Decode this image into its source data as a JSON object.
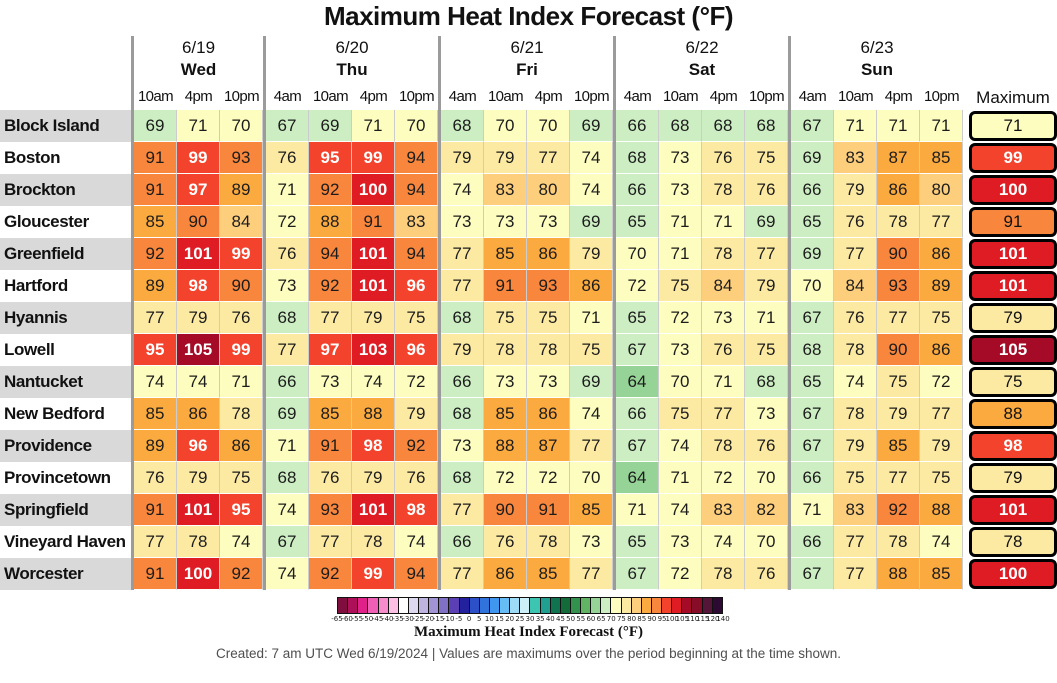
{
  "title": "Maximum Heat Index Forecast (°F)",
  "chart_data": {
    "type": "heatmap",
    "title": "Maximum Heat Index Forecast (°F)",
    "unit": "°F",
    "max_header": "Maximum",
    "white_text_min": 95,
    "days": [
      {
        "date": "6/19",
        "name": "Wed",
        "times": [
          "10am",
          "4pm",
          "10pm"
        ]
      },
      {
        "date": "6/20",
        "name": "Thu",
        "times": [
          "4am",
          "10am",
          "4pm",
          "10pm"
        ]
      },
      {
        "date": "6/21",
        "name": "Fri",
        "times": [
          "4am",
          "10am",
          "4pm",
          "10pm"
        ]
      },
      {
        "date": "6/22",
        "name": "Sat",
        "times": [
          "4am",
          "10am",
          "4pm",
          "10pm"
        ]
      },
      {
        "date": "6/23",
        "name": "Sun",
        "times": [
          "4am",
          "10am",
          "4pm",
          "10pm"
        ]
      }
    ],
    "color_bins": [
      {
        "min": 60,
        "color": "#96d396"
      },
      {
        "min": 65,
        "color": "#cdeec3"
      },
      {
        "min": 70,
        "color": "#fcfdbe"
      },
      {
        "min": 75,
        "color": "#fdeaa2"
      },
      {
        "min": 80,
        "color": "#fdcf7c"
      },
      {
        "min": 85,
        "color": "#fbaa3f"
      },
      {
        "min": 90,
        "color": "#f8863c"
      },
      {
        "min": 95,
        "color": "#f4432d"
      },
      {
        "min": 100,
        "color": "#df1c24"
      },
      {
        "min": 105,
        "color": "#a50b26"
      }
    ],
    "rows": [
      {
        "location": "Block Island",
        "values": [
          69,
          71,
          70,
          67,
          69,
          71,
          70,
          68,
          70,
          70,
          69,
          66,
          68,
          68,
          68,
          67,
          71,
          71,
          71
        ],
        "max": 71
      },
      {
        "location": "Boston",
        "values": [
          91,
          99,
          93,
          76,
          95,
          99,
          94,
          79,
          79,
          77,
          74,
          68,
          73,
          76,
          75,
          69,
          83,
          87,
          85
        ],
        "max": 99
      },
      {
        "location": "Brockton",
        "values": [
          91,
          97,
          89,
          71,
          92,
          100,
          94,
          74,
          83,
          80,
          74,
          66,
          73,
          78,
          76,
          66,
          79,
          86,
          80
        ],
        "max": 100
      },
      {
        "location": "Gloucester",
        "values": [
          85,
          90,
          84,
          72,
          88,
          91,
          83,
          73,
          73,
          73,
          69,
          65,
          71,
          71,
          69,
          65,
          76,
          78,
          77
        ],
        "max": 91
      },
      {
        "location": "Greenfield",
        "values": [
          92,
          101,
          99,
          76,
          94,
          101,
          94,
          77,
          85,
          86,
          79,
          70,
          71,
          78,
          77,
          69,
          77,
          90,
          86
        ],
        "max": 101
      },
      {
        "location": "Hartford",
        "values": [
          89,
          98,
          90,
          73,
          92,
          101,
          96,
          77,
          91,
          93,
          86,
          72,
          75,
          84,
          79,
          70,
          84,
          93,
          89
        ],
        "max": 101
      },
      {
        "location": "Hyannis",
        "values": [
          77,
          79,
          76,
          68,
          77,
          79,
          75,
          68,
          75,
          75,
          71,
          65,
          72,
          73,
          71,
          67,
          76,
          77,
          75
        ],
        "max": 79
      },
      {
        "location": "Lowell",
        "values": [
          95,
          105,
          99,
          77,
          97,
          103,
          96,
          79,
          78,
          78,
          75,
          67,
          73,
          76,
          75,
          68,
          78,
          90,
          86
        ],
        "max": 105
      },
      {
        "location": "Nantucket",
        "values": [
          74,
          74,
          71,
          66,
          73,
          74,
          72,
          66,
          73,
          73,
          69,
          64,
          70,
          71,
          68,
          65,
          74,
          75,
          72
        ],
        "max": 75
      },
      {
        "location": "New Bedford",
        "values": [
          85,
          86,
          78,
          69,
          85,
          88,
          79,
          68,
          85,
          86,
          74,
          66,
          75,
          77,
          73,
          67,
          78,
          79,
          77
        ],
        "max": 88
      },
      {
        "location": "Providence",
        "values": [
          89,
          96,
          86,
          71,
          91,
          98,
          92,
          73,
          88,
          87,
          77,
          67,
          74,
          78,
          76,
          67,
          79,
          85,
          79
        ],
        "max": 98
      },
      {
        "location": "Provincetown",
        "values": [
          76,
          79,
          75,
          68,
          76,
          79,
          76,
          68,
          72,
          72,
          70,
          64,
          71,
          72,
          70,
          66,
          75,
          77,
          75
        ],
        "max": 79
      },
      {
        "location": "Springfield",
        "values": [
          91,
          101,
          95,
          74,
          93,
          101,
          98,
          77,
          90,
          91,
          85,
          71,
          74,
          83,
          82,
          71,
          83,
          92,
          88
        ],
        "max": 101
      },
      {
        "location": "Vineyard Haven",
        "values": [
          77,
          78,
          74,
          67,
          77,
          78,
          74,
          66,
          76,
          78,
          73,
          65,
          73,
          74,
          70,
          66,
          77,
          78,
          74
        ],
        "max": 78
      },
      {
        "location": "Worcester",
        "values": [
          91,
          100,
          92,
          74,
          92,
          99,
          94,
          77,
          86,
          85,
          77,
          67,
          72,
          78,
          76,
          67,
          77,
          88,
          85
        ],
        "max": 100
      }
    ]
  },
  "colorbar": {
    "label": "Maximum Heat Index Forecast (°F)",
    "ticks": [
      -65,
      -60,
      -55,
      -50,
      -45,
      -40,
      -35,
      -30,
      -25,
      -20,
      -15,
      -10,
      -5,
      0,
      5,
      10,
      15,
      20,
      25,
      30,
      35,
      40,
      45,
      50,
      55,
      60,
      65,
      70,
      75,
      80,
      85,
      90,
      95,
      100,
      105,
      110,
      115,
      120,
      140
    ],
    "colors": [
      "#7f0d3d",
      "#ad1059",
      "#e0218a",
      "#ee5fb5",
      "#f78ccd",
      "#fbc0e3",
      "#ffffff",
      "#ddd8ee",
      "#bfb4e0",
      "#a193d4",
      "#8071c7",
      "#5b3fb5",
      "#24219f",
      "#2b50c8",
      "#3173dd",
      "#3f97f0",
      "#66bdf5",
      "#9edbf7",
      "#cdeff7",
      "#3cc6b2",
      "#1fa090",
      "#0f7350",
      "#136b3a",
      "#33914e",
      "#62b465",
      "#96d396",
      "#cdeec3",
      "#fcfdbe",
      "#fdeaa2",
      "#fdcf7c",
      "#fbaa3f",
      "#f8863c",
      "#f4432d",
      "#df1c24",
      "#a50b26",
      "#870c28",
      "#551539",
      "#2d0a31"
    ]
  },
  "footer": {
    "created": "Created: 7 am UTC Wed 6/19/2024  |  Values are maximums over the period beginning at the time shown."
  }
}
